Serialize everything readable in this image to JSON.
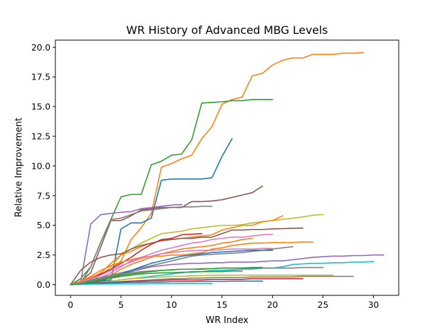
{
  "chart_data": {
    "type": "line",
    "title": "WR History of Advanced MBG Levels",
    "xlabel": "WR Index",
    "ylabel": "Relative Improvement",
    "xlim": [
      -1.5,
      32.5
    ],
    "ylim": [
      -0.9,
      20.6
    ],
    "xticks": [
      0,
      5,
      10,
      15,
      20,
      25,
      30
    ],
    "xtick_labels": [
      "0",
      "5",
      "10",
      "15",
      "20",
      "25",
      "30"
    ],
    "yticks": [
      0,
      2.5,
      5,
      7.5,
      10,
      12.5,
      15,
      17.5,
      20
    ],
    "ytick_labels": [
      "0.0",
      "2.5",
      "5.0",
      "7.5",
      "10.0",
      "12.5",
      "15.0",
      "17.5",
      "20.0"
    ],
    "grid": false,
    "legend": "none",
    "series": [
      {
        "color": "#ff7f0e",
        "values": [
          0,
          0.3,
          0.6,
          0.9,
          1.3,
          2.0,
          3.8,
          4.8,
          6.0,
          9.9,
          10.2,
          10.6,
          10.9,
          12.3,
          13.3,
          15.2,
          15.6,
          15.8,
          17.6,
          17.8,
          18.5,
          18.9,
          19.1,
          19.1,
          19.4,
          19.4,
          19.4,
          19.5,
          19.5,
          19.55
        ]
      },
      {
        "color": "#2ca02c",
        "values": [
          0,
          0.5,
          1.5,
          3.6,
          5.5,
          7.4,
          7.6,
          7.6,
          10.1,
          10.4,
          10.9,
          11.0,
          12.2,
          15.3,
          15.35,
          15.4,
          15.5,
          15.5,
          15.6,
          15.6,
          15.6
        ]
      },
      {
        "color": "#1f77b4",
        "values": [
          0,
          0.1,
          0.2,
          0.3,
          0.4,
          4.7,
          5.2,
          5.2,
          5.6,
          8.8,
          8.9,
          8.9,
          8.9,
          8.9,
          9.0,
          10.8,
          12.3
        ]
      },
      {
        "color": "#8c564b",
        "values": [
          0,
          0.3,
          1.0,
          3.2,
          5.4,
          5.4,
          5.8,
          6.3,
          6.4,
          6.5,
          6.5,
          6.5,
          7.0,
          7.0,
          7.05,
          7.15,
          7.35,
          7.55,
          7.75,
          8.3
        ]
      },
      {
        "color": "#9467bd",
        "values": [
          0,
          0.2,
          5.1,
          5.9,
          6.0,
          6.1,
          6.15,
          6.4,
          6.5,
          6.6,
          6.7,
          6.75
        ]
      },
      {
        "color": "#7f7f7f",
        "values": [
          0,
          0.1,
          1.5,
          3.6,
          5.5,
          5.6,
          5.9,
          6.2,
          6.3,
          6.4,
          6.5,
          6.55,
          6.55,
          6.6,
          6.6
        ]
      },
      {
        "color": "#bcbd22",
        "values": [
          0,
          0.1,
          0.3,
          0.8,
          1.5,
          2.5,
          3.0,
          3.5,
          3.9,
          4.3,
          4.4,
          4.5,
          4.7,
          4.8,
          4.9,
          5.0,
          5.0,
          5.05,
          5.2,
          5.3,
          5.4,
          5.5,
          5.6,
          5.7,
          5.85,
          5.9
        ]
      },
      {
        "color": "#ff7f0e",
        "values": [
          0,
          0.2,
          0.5,
          1.0,
          1.8,
          2.5,
          2.8,
          3.2,
          3.5,
          3.7,
          3.8,
          3.9,
          4.0,
          4.1,
          4.2,
          4.6,
          4.8,
          5.0,
          5.0,
          5.3,
          5.4,
          5.8
        ]
      },
      {
        "color": "#8c564b",
        "values": [
          0,
          1.2,
          1.9,
          2.3,
          2.5,
          2.6,
          3.0,
          3.3,
          3.5,
          3.7,
          3.8,
          3.9,
          3.9,
          4.0,
          4.0,
          4.3,
          4.6,
          4.6,
          4.65,
          4.65,
          4.7,
          4.72,
          4.75,
          4.77
        ]
      },
      {
        "color": "#d62728",
        "values": [
          0,
          0.2,
          0.5,
          0.9,
          1.3,
          1.8,
          2.3,
          2.9,
          3.4,
          3.8,
          3.9,
          4.2,
          4.25,
          4.3
        ]
      },
      {
        "color": "#e377c2",
        "values": [
          0,
          0.1,
          0.3,
          0.6,
          1.0,
          1.5,
          2.0,
          2.3,
          2.6,
          2.9,
          3.1,
          3.3,
          3.5,
          3.6,
          3.8,
          3.9,
          4.0,
          4.0,
          4.1,
          4.2,
          4.25
        ]
      },
      {
        "color": "#ff7f0e",
        "values": [
          0,
          0.1,
          0.2,
          0.4,
          0.8,
          1.3,
          1.7,
          2.0,
          2.3,
          2.6,
          2.8,
          3.0,
          3.1,
          3.2,
          3.3,
          3.5,
          3.6,
          3.8,
          3.9
        ]
      },
      {
        "color": "#ff7f0e",
        "values": [
          0,
          0.3,
          0.7,
          1.2,
          1.6,
          1.9,
          2.1,
          2.3,
          2.4,
          2.4,
          2.5,
          2.5,
          2.6,
          2.7,
          3.0,
          3.1,
          3.3,
          3.4,
          3.5,
          3.5,
          3.55,
          3.55,
          3.55,
          3.6,
          3.6
        ]
      },
      {
        "color": "#7f7f7f",
        "values": [
          0,
          0.2,
          0.4,
          0.6,
          0.8,
          1.0,
          1.2,
          1.4,
          1.6,
          1.8,
          2.0,
          2.2,
          2.4,
          2.5,
          2.55,
          2.6,
          2.65,
          2.7,
          2.8,
          2.9,
          3.0,
          3.1,
          3.2
        ]
      },
      {
        "color": "#9467bd",
        "values": [
          0,
          0.1,
          0.3,
          0.5,
          0.7,
          0.9,
          1.1,
          1.3,
          1.5,
          1.6,
          1.7,
          1.75,
          1.8,
          1.8,
          1.85,
          1.85,
          1.9,
          1.9,
          1.9,
          1.95,
          2.0,
          2.0,
          2.1,
          2.2,
          2.3,
          2.35,
          2.4,
          2.4,
          2.45,
          2.45,
          2.5,
          2.5
        ]
      },
      {
        "color": "#1f77b4",
        "values": [
          0,
          0.05,
          0.15,
          0.3,
          0.6,
          0.9,
          1.2,
          1.5,
          1.8,
          2.0,
          2.2,
          2.4,
          2.5,
          2.6,
          2.7,
          2.75,
          2.8,
          2.85,
          2.9,
          2.9,
          2.9
        ]
      },
      {
        "color": "#e377c2",
        "values": [
          0,
          0.2,
          0.5,
          0.8,
          1.2,
          1.6,
          1.9,
          2.2,
          2.4,
          2.6,
          2.7,
          2.8,
          2.85,
          2.9,
          2.9,
          2.95,
          3.0,
          3.0,
          3.0,
          3.05,
          3.05
        ]
      },
      {
        "color": "#17becf",
        "values": [
          0,
          0.05,
          0.1,
          0.2,
          0.3,
          0.4,
          0.5,
          0.6,
          0.7,
          0.8,
          0.9,
          1.0,
          1.1,
          1.1,
          1.2,
          1.2,
          1.25,
          1.3,
          1.3,
          1.4,
          1.4,
          1.5,
          1.7,
          1.75,
          1.8,
          1.8,
          1.85,
          1.85,
          1.9,
          1.9,
          1.95
        ]
      },
      {
        "color": "#7f7f7f",
        "values": [
          0,
          0.1,
          0.3,
          0.5,
          0.7,
          0.9,
          1.0,
          1.1,
          1.15,
          1.2,
          1.25,
          1.3,
          1.3,
          1.35,
          1.35,
          1.4,
          1.4,
          1.4,
          1.4,
          1.4,
          1.4,
          1.4,
          1.4,
          1.45,
          1.45,
          1.45
        ]
      },
      {
        "color": "#2ca02c",
        "values": [
          0,
          0.1,
          0.2,
          0.4,
          0.6,
          0.8,
          0.9,
          1.0,
          1.1,
          1.2,
          1.25,
          1.3,
          1.3,
          1.3,
          1.35,
          1.4,
          1.4,
          1.4,
          1.45,
          1.45
        ]
      },
      {
        "color": "#bcbd22",
        "values": [
          0,
          0.05,
          0.1,
          0.2,
          0.3,
          0.4,
          0.5,
          0.55,
          0.6,
          0.65,
          0.7,
          0.7,
          0.75,
          0.75,
          0.8,
          0.8,
          0.8,
          0.8,
          0.8,
          0.8,
          0.8,
          0.8,
          0.8,
          0.8,
          0.8,
          0.8,
          0.8
        ]
      },
      {
        "color": "#7f7f7f",
        "values": [
          0,
          0.05,
          0.1,
          0.15,
          0.2,
          0.25,
          0.3,
          0.35,
          0.4,
          0.45,
          0.5,
          0.5,
          0.55,
          0.55,
          0.6,
          0.6,
          0.6,
          0.6,
          0.65,
          0.65,
          0.65,
          0.65,
          0.65,
          0.7,
          0.7,
          0.7,
          0.7,
          0.7,
          0.7
        ]
      },
      {
        "color": "#d62728",
        "values": [
          0,
          0.05,
          0.1,
          0.15,
          0.2,
          0.25,
          0.3,
          0.3,
          0.35,
          0.35,
          0.4,
          0.4,
          0.4,
          0.4,
          0.45,
          0.45,
          0.45,
          0.45,
          0.5,
          0.5,
          0.5,
          0.5,
          0.5,
          0.5
        ]
      },
      {
        "color": "#1f77b4",
        "values": [
          0,
          0.05,
          0.1,
          0.12,
          0.15,
          0.18,
          0.2,
          0.2,
          0.22,
          0.22,
          0.25,
          0.25,
          0.25,
          0.28,
          0.28,
          0.28,
          0.3,
          0.3,
          0.3,
          0.3
        ]
      },
      {
        "color": "#17becf",
        "values": [
          0,
          0.02,
          0.04,
          0.05,
          0.06,
          0.07,
          0.08,
          0.08,
          0.09,
          0.09,
          0.1,
          0.1,
          0.1,
          0.1,
          0.1
        ]
      },
      {
        "color": "#2ca02c",
        "values": [
          0,
          0.1,
          0.25,
          0.4,
          0.55,
          0.7,
          0.8,
          0.9,
          0.95,
          1.0,
          1.0,
          1.05,
          1.05,
          1.1,
          1.1,
          1.1,
          1.15,
          1.15
        ]
      }
    ]
  }
}
